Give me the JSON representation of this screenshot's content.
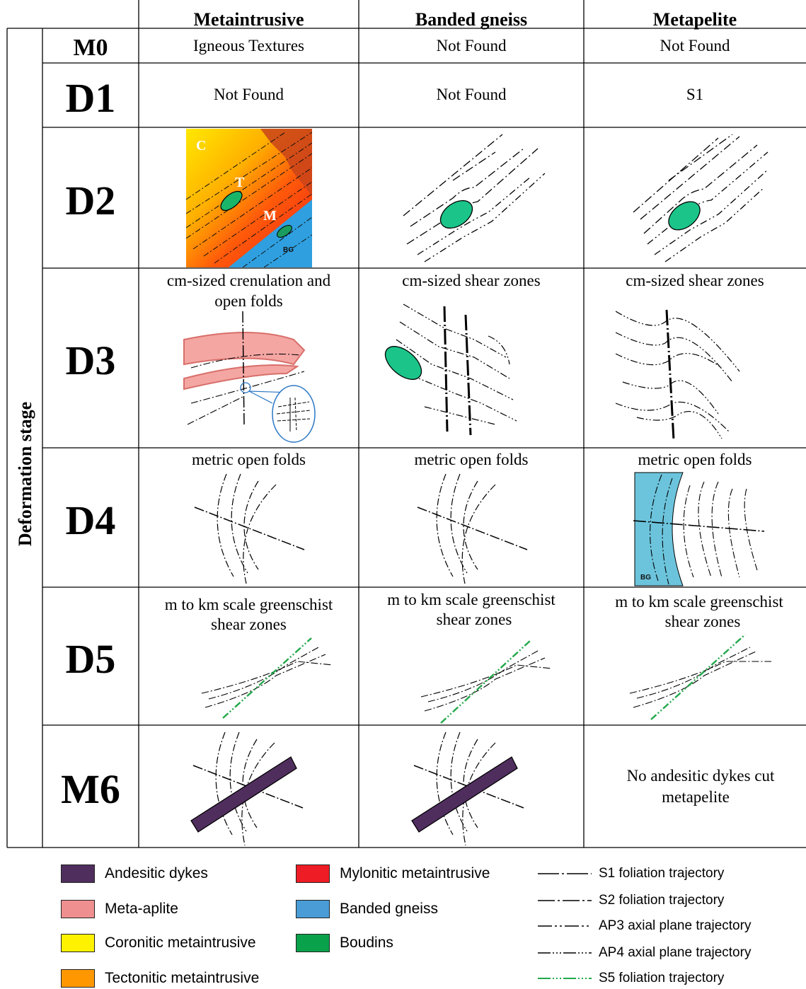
{
  "header": {
    "col1": "Metaintrusive",
    "col2": "Banded gneiss",
    "col3": "Metapelite"
  },
  "side_label": "Deformation stage",
  "rows": {
    "m0": {
      "stage": "M0",
      "c1": "Igneous Textures",
      "c2": "Not Found",
      "c3": "Not Found"
    },
    "d1": {
      "stage": "D1",
      "c1": "Not Found",
      "c2": "Not Found",
      "c3": "S1"
    },
    "d2": {
      "stage": "D2"
    },
    "d3": {
      "stage": "D3",
      "c1_line1": "cm-sized crenulation and",
      "c1_line2": "open folds",
      "c2": "cm-sized shear zones",
      "c3": "cm-sized shear zones"
    },
    "d4": {
      "stage": "D4",
      "c1": "metric open folds",
      "c2": "metric open folds",
      "c3": "metric open folds"
    },
    "d5": {
      "stage": "D5",
      "c1_line1": "m to km scale greenschist",
      "c1_line2": "shear zones",
      "c2_line1": "m to km scale greenschist",
      "c2_line2": "shear zones",
      "c3_line1": "m to km scale greenschist",
      "c3_line2": "shear zones"
    },
    "m6": {
      "stage": "M6",
      "c3_line1": "No andesitic dykes cut",
      "c3_line2": "metapelite"
    }
  },
  "figure_labels": {
    "d2_c": "C",
    "d2_t": "T",
    "d2_m": "M",
    "d2_bg": "BG",
    "d4_bg": "BG"
  },
  "legend": {
    "andesitic": {
      "label": "Andesitic dykes",
      "color": "#4f2e5e"
    },
    "metaaplite": {
      "label": "Meta-aplite",
      "color": "#f08f8f"
    },
    "coronitic": {
      "label": "Coronitic metaintrusive",
      "color": "#fff200"
    },
    "tectonitic": {
      "label": "Tectonitic metaintrusive",
      "color": "#ff9800"
    },
    "mylonitic": {
      "label": "Mylonitic metaintrusive",
      "color": "#ee1c24"
    },
    "banded": {
      "label": "Banded gneiss",
      "color": "#4a9cd6"
    },
    "boudins": {
      "label": "Boudins",
      "color": "#0aa14b"
    },
    "s1": {
      "label": "S1 foliation trajectory"
    },
    "s2": {
      "label": "S2 foliation trajectory"
    },
    "ap3": {
      "label": "AP3 axial plane trajectory"
    },
    "ap4": {
      "label": "AP4 axial plane trajectory"
    },
    "s5": {
      "label": "S5 foliation trajectory",
      "color": "#22a84a"
    }
  },
  "colors": {
    "boudin_fill": "#1bc589",
    "banded_fill": "#6cc4dc",
    "aplite_fill": "#f4a6a3",
    "dyke_fill": "#4f2e5e",
    "s5_green": "#22a84a"
  }
}
